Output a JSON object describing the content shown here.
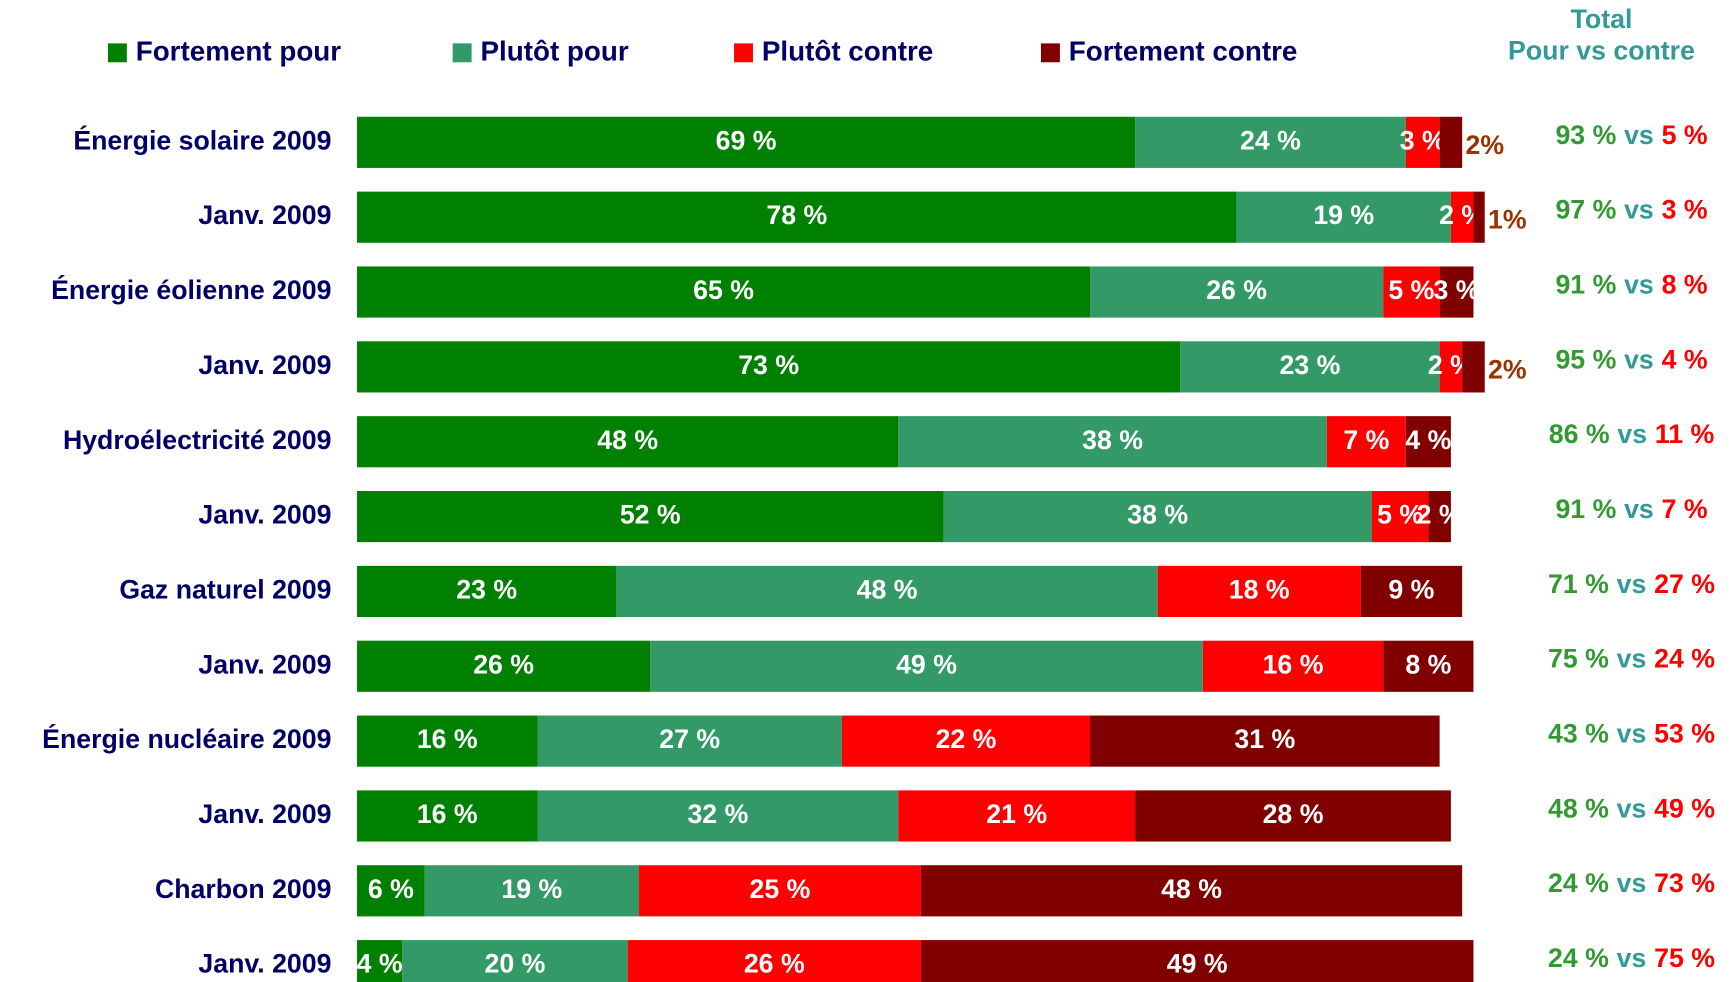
{
  "chart_data": {
    "type": "stacked_bar_horizontal",
    "categories": [
      "Énergie solaire 2009",
      "Janv. 2009",
      "Énergie éolienne 2009",
      "Janv. 2009",
      "Hydroélectricité 2009",
      "Janv. 2009",
      "Gaz naturel 2009",
      "Janv. 2009",
      "Énergie nucléaire 2009",
      "Janv. 2009",
      "Charbon 2009",
      "Janv. 2009"
    ],
    "xlim": [
      0,
      100
    ],
    "series": [
      {
        "name": "Fortement pour",
        "color": "#008000",
        "values": [
          69,
          78,
          65,
          73,
          48,
          52,
          23,
          26,
          16,
          16,
          6,
          4
        ],
        "value_labels": [
          "69 %",
          "78 %",
          "65 %",
          "73 %",
          "48 %",
          "52 %",
          "23 %",
          "26 %",
          "16 %",
          "16 %",
          "6 %",
          "4 %"
        ]
      },
      {
        "name": "Plutôt pour",
        "color": "#339966",
        "values": [
          24,
          19,
          26,
          23,
          38,
          38,
          48,
          49,
          27,
          32,
          19,
          20
        ],
        "value_labels": [
          "24 %",
          "19 %",
          "26 %",
          "23 %",
          "38 %",
          "38 %",
          "48 %",
          "49 %",
          "27 %",
          "32 %",
          "19 %",
          "20 %"
        ]
      },
      {
        "name": "Plutôt contre",
        "color": "#ff0000",
        "values": [
          3,
          2,
          5,
          2,
          7,
          5,
          18,
          16,
          22,
          21,
          25,
          26
        ],
        "value_labels": [
          "3 %",
          "2 %",
          "5 %",
          "2 %",
          "7 %",
          "5 %",
          "18 %",
          "16 %",
          "22 %",
          "21 %",
          "25 %",
          "26 %"
        ]
      },
      {
        "name": "Fortement contre",
        "color": "#800000",
        "values": [
          2,
          1,
          3,
          2,
          4,
          2,
          9,
          8,
          31,
          28,
          48,
          49
        ],
        "value_labels": [
          "2%",
          "1%",
          "3 %",
          "2%",
          "4 %",
          "2 %",
          "9 %",
          "8 %",
          "31 %",
          "28 %",
          "48 %",
          "49 %"
        ]
      }
    ],
    "totals": {
      "title": "Total",
      "subtitle": "Pour vs contre",
      "connector": "vs",
      "pour": [
        93,
        97,
        91,
        95,
        86,
        91,
        71,
        75,
        43,
        48,
        24,
        24
      ],
      "pour_labels": [
        "93 %",
        "97 %",
        "91 %",
        "95 %",
        "86 %",
        "91 %",
        "71 %",
        "75 %",
        "43 %",
        "48 %",
        "24 %",
        "24 %"
      ],
      "contre": [
        5,
        3,
        8,
        4,
        11,
        7,
        27,
        24,
        53,
        49,
        73,
        75
      ],
      "contre_labels": [
        "5 %",
        "3 %",
        "8 %",
        "4 %",
        "11 %",
        "7 %",
        "27 %",
        "24 %",
        "53 %",
        "49 %",
        "73 %",
        "75 %"
      ]
    }
  }
}
